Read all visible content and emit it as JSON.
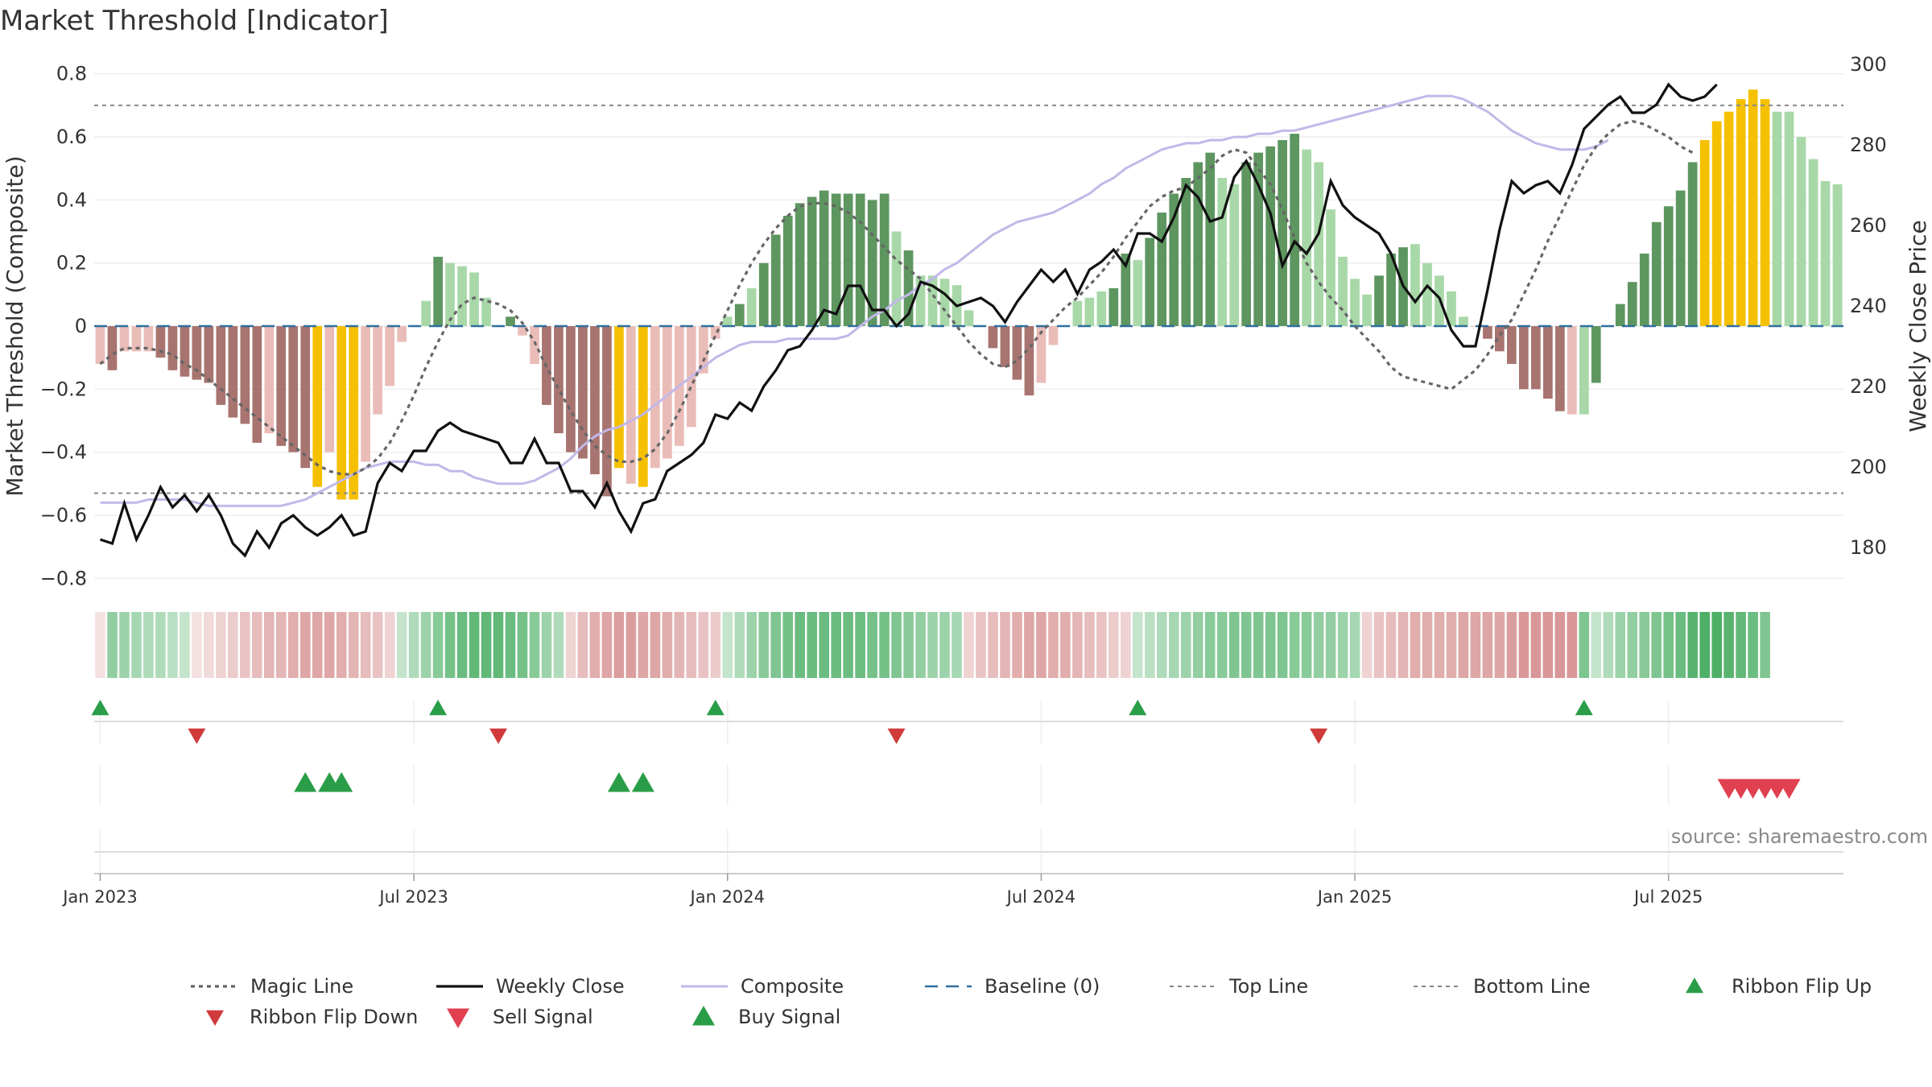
{
  "title": "Market Threshold [Indicator]",
  "source": "source: sharemaestro.com",
  "colors": {
    "magic_line": "#666666",
    "weekly_close": "#111111",
    "composite": "#c2b8e8",
    "baseline": "#2f6f9f",
    "threshold_lines": "#888888",
    "buy_green": "#2a9d48",
    "sell_red": "#e04050",
    "flip_down_red": "#d03a3a",
    "bar_dark_green": "#5e9660",
    "bar_light_green": "#a8d8a8",
    "bar_dark_red": "#a87470",
    "bar_light_red": "#eabcb8",
    "bar_yellow": "#f5c000"
  },
  "chart_data": {
    "type": "bar",
    "start_week": "2022-12-26",
    "y_left": {
      "label": "Market Threshold (Composite)",
      "range": [
        -0.83,
        0.83
      ],
      "ticks": [
        0.8,
        0.6,
        0.4,
        0.2,
        0,
        -0.2,
        -0.4,
        -0.6,
        -0.8
      ],
      "tick_labels": [
        "0.8",
        "0.6",
        "0.4",
        "0.2",
        "0",
        "−0.2",
        "−0.4",
        "−0.6",
        "−0.8"
      ]
    },
    "y_right": {
      "label": "Weekly Close Price",
      "range": [
        170,
        300
      ],
      "ticks": [
        300,
        280,
        260,
        240,
        220,
        200,
        180
      ],
      "tick_labels": [
        "300",
        "280",
        "260",
        "240",
        "220",
        "200",
        "180"
      ]
    },
    "x_ticks": [
      {
        "label": "Jan 2023",
        "week": 1
      },
      {
        "label": "Jul 2023",
        "week": 27
      },
      {
        "label": "Jan 2024",
        "week": 53
      },
      {
        "label": "Jul 2024",
        "week": 79
      },
      {
        "label": "Jan 2025",
        "week": 105
      },
      {
        "label": "Jul 2025",
        "week": 131
      }
    ],
    "top_line": 0.7,
    "bottom_line": -0.53,
    "baseline": 0,
    "composite": [
      -0.12,
      -0.14,
      -0.08,
      -0.08,
      -0.08,
      -0.1,
      -0.14,
      -0.16,
      -0.17,
      -0.18,
      -0.25,
      -0.29,
      -0.31,
      -0.37,
      -0.34,
      -0.38,
      -0.4,
      -0.45,
      -0.51,
      -0.4,
      -0.55,
      -0.55,
      -0.43,
      -0.28,
      -0.19,
      -0.05,
      0.0,
      0.08,
      0.22,
      0.2,
      0.19,
      0.17,
      0.09,
      0.0,
      0.03,
      -0.03,
      -0.12,
      -0.25,
      -0.34,
      -0.4,
      -0.42,
      -0.47,
      -0.54,
      -0.45,
      -0.5,
      -0.51,
      -0.45,
      -0.42,
      -0.38,
      -0.32,
      -0.15,
      -0.04,
      0.03,
      0.07,
      0.12,
      0.2,
      0.29,
      0.35,
      0.39,
      0.41,
      0.43,
      0.42,
      0.42,
      0.42,
      0.4,
      0.42,
      0.3,
      0.24,
      0.16,
      0.16,
      0.15,
      0.13,
      0.05,
      0.0,
      -0.07,
      -0.13,
      -0.17,
      -0.22,
      -0.18,
      -0.06,
      0.0,
      0.08,
      0.09,
      0.11,
      0.12,
      0.23,
      0.21,
      0.28,
      0.36,
      0.42,
      0.47,
      0.52,
      0.55,
      0.47,
      0.45,
      0.52,
      0.55,
      0.57,
      0.59,
      0.61,
      0.56,
      0.52,
      0.37,
      0.22,
      0.15,
      0.1,
      0.16,
      0.23,
      0.25,
      0.26,
      0.2,
      0.16,
      0.11,
      0.03,
      0.0,
      -0.04,
      -0.08,
      -0.12,
      -0.2,
      -0.2,
      -0.23,
      -0.27,
      -0.28,
      -0.28,
      -0.18,
      0.0,
      0.07,
      0.14,
      0.23,
      0.33,
      0.38,
      0.43,
      0.52,
      0.59,
      0.65,
      0.68,
      0.72,
      0.75,
      0.72,
      0.68,
      0.68,
      0.6,
      0.53,
      0.46,
      0.45
    ],
    "bar_colors": [
      "lr",
      "dr",
      "lr",
      "lr",
      "lr",
      "dr",
      "dr",
      "dr",
      "dr",
      "dr",
      "dr",
      "dr",
      "dr",
      "dr",
      "lr",
      "dr",
      "dr",
      "dr",
      "y",
      "lr",
      "y",
      "y",
      "lr",
      "lr",
      "lr",
      "lr",
      "lr",
      "lg",
      "dg",
      "lg",
      "lg",
      "lg",
      "lg",
      "lg",
      "dg",
      "lr",
      "lr",
      "dr",
      "dr",
      "dr",
      "dr",
      "dr",
      "dr",
      "y",
      "lr",
      "y",
      "lr",
      "lr",
      "lr",
      "lr",
      "lr",
      "lr",
      "lg",
      "dg",
      "lg",
      "dg",
      "dg",
      "dg",
      "dg",
      "dg",
      "dg",
      "dg",
      "dg",
      "dg",
      "dg",
      "dg",
      "lg",
      "dg",
      "lg",
      "lg",
      "lg",
      "lg",
      "lg",
      "lg",
      "dr",
      "dr",
      "dr",
      "dr",
      "lr",
      "lr",
      "lg",
      "lg",
      "lg",
      "lg",
      "dg",
      "dg",
      "lg",
      "dg",
      "dg",
      "dg",
      "dg",
      "dg",
      "dg",
      "lg",
      "lg",
      "dg",
      "dg",
      "dg",
      "dg",
      "dg",
      "lg",
      "lg",
      "lg",
      "lg",
      "lg",
      "lg",
      "dg",
      "dg",
      "dg",
      "lg",
      "lg",
      "lg",
      "lg",
      "lg",
      "lr",
      "dr",
      "dr",
      "dr",
      "dr",
      "dr",
      "dr",
      "dr",
      "lr",
      "lg",
      "dg",
      "dg",
      "dg",
      "dg",
      "dg",
      "dg",
      "dg",
      "dg",
      "dg",
      "y",
      "y",
      "y",
      "y",
      "y",
      "y",
      "lg",
      "lg",
      "lg",
      "lg"
    ],
    "magic_line": [
      -0.12,
      -0.09,
      -0.07,
      -0.07,
      -0.07,
      -0.08,
      -0.09,
      -0.12,
      -0.14,
      -0.17,
      -0.2,
      -0.23,
      -0.26,
      -0.29,
      -0.32,
      -0.35,
      -0.38,
      -0.41,
      -0.44,
      -0.46,
      -0.47,
      -0.47,
      -0.45,
      -0.42,
      -0.37,
      -0.3,
      -0.22,
      -0.13,
      -0.05,
      0.02,
      0.07,
      0.09,
      0.08,
      0.07,
      0.05,
      0.01,
      -0.05,
      -0.13,
      -0.2,
      -0.27,
      -0.33,
      -0.38,
      -0.41,
      -0.43,
      -0.43,
      -0.42,
      -0.39,
      -0.34,
      -0.27,
      -0.19,
      -0.11,
      -0.03,
      0.05,
      0.13,
      0.2,
      0.26,
      0.31,
      0.35,
      0.38,
      0.39,
      0.39,
      0.38,
      0.36,
      0.33,
      0.29,
      0.25,
      0.21,
      0.18,
      0.15,
      0.1,
      0.05,
      0.0,
      -0.05,
      -0.09,
      -0.12,
      -0.13,
      -0.11,
      -0.07,
      -0.02,
      0.02,
      0.06,
      0.09,
      0.13,
      0.17,
      0.22,
      0.28,
      0.33,
      0.38,
      0.41,
      0.43,
      0.44,
      0.47,
      0.5,
      0.54,
      0.56,
      0.55,
      0.5,
      0.45,
      0.37,
      0.28,
      0.2,
      0.14,
      0.09,
      0.05,
      0.0,
      -0.04,
      -0.08,
      -0.13,
      -0.16,
      -0.17,
      -0.18,
      -0.19,
      -0.2,
      -0.17,
      -0.14,
      -0.09,
      -0.03,
      0.02,
      0.1,
      0.18,
      0.27,
      0.35,
      0.43,
      0.51,
      0.57,
      0.61,
      0.64,
      0.65,
      0.64,
      0.62,
      0.6,
      0.57,
      0.55
    ],
    "composite_line": [
      -0.56,
      -0.56,
      -0.56,
      -0.56,
      -0.55,
      -0.55,
      -0.55,
      -0.55,
      -0.56,
      -0.57,
      -0.57,
      -0.57,
      -0.57,
      -0.57,
      -0.57,
      -0.57,
      -0.56,
      -0.55,
      -0.53,
      -0.51,
      -0.49,
      -0.47,
      -0.45,
      -0.44,
      -0.43,
      -0.43,
      -0.43,
      -0.44,
      -0.44,
      -0.46,
      -0.46,
      -0.48,
      -0.49,
      -0.5,
      -0.5,
      -0.5,
      -0.49,
      -0.47,
      -0.45,
      -0.42,
      -0.38,
      -0.35,
      -0.33,
      -0.32,
      -0.3,
      -0.28,
      -0.25,
      -0.22,
      -0.19,
      -0.16,
      -0.13,
      -0.1,
      -0.08,
      -0.06,
      -0.05,
      -0.05,
      -0.05,
      -0.04,
      -0.04,
      -0.04,
      -0.04,
      -0.04,
      -0.03,
      0.0,
      0.03,
      0.05,
      0.08,
      0.1,
      0.13,
      0.15,
      0.18,
      0.2,
      0.23,
      0.26,
      0.29,
      0.31,
      0.33,
      0.34,
      0.35,
      0.36,
      0.38,
      0.4,
      0.42,
      0.45,
      0.47,
      0.5,
      0.52,
      0.54,
      0.56,
      0.57,
      0.58,
      0.58,
      0.59,
      0.59,
      0.6,
      0.6,
      0.61,
      0.61,
      0.62,
      0.62,
      0.63,
      0.64,
      0.65,
      0.66,
      0.67,
      0.68,
      0.69,
      0.7,
      0.71,
      0.72,
      0.73,
      0.73,
      0.73,
      0.72,
      0.7,
      0.68,
      0.65,
      0.62,
      0.6,
      0.58,
      0.57,
      0.56,
      0.56,
      0.56,
      0.57,
      0.59
    ],
    "weekly_close": [
      182,
      181,
      191,
      182,
      188,
      195,
      190,
      193,
      189,
      193,
      188,
      181,
      178,
      184,
      180,
      186,
      188,
      185,
      183,
      185,
      188,
      183,
      184,
      196,
      201,
      199,
      204,
      204,
      209,
      211,
      209,
      208,
      207,
      206,
      201,
      201,
      207,
      201,
      201,
      194,
      194,
      190,
      196,
      189,
      184,
      191,
      192,
      199,
      201,
      203,
      206,
      213,
      212,
      216,
      214,
      220,
      224,
      229,
      230,
      234,
      239,
      238,
      245,
      245,
      239,
      239,
      235,
      238,
      246,
      245,
      243,
      240,
      241,
      242,
      240,
      236,
      241,
      245,
      249,
      246,
      249,
      243,
      249,
      251,
      254,
      250,
      258,
      258,
      256,
      262,
      270,
      267,
      261,
      262,
      272,
      276,
      270,
      263,
      250,
      256,
      253,
      258,
      271,
      265,
      262,
      260,
      258,
      253,
      245,
      241,
      245,
      242,
      234,
      230,
      230,
      244,
      259,
      271,
      268,
      270,
      271,
      268,
      275,
      284,
      287,
      290,
      292,
      288,
      288,
      290,
      295,
      292,
      291,
      292,
      295
    ]
  },
  "ribbon": [
    "lr",
    "lg",
    "lg",
    "lg",
    "lg",
    "lg",
    "lg",
    "lg",
    "lr",
    "lr",
    "lr",
    "lr",
    "lr",
    "lr",
    "lr",
    "lr",
    "lr",
    "lr",
    "lr",
    "lr",
    "lr",
    "lr",
    "lr",
    "lr",
    "lr",
    "lg",
    "lg",
    "lg",
    "lg",
    "dg",
    "dg",
    "dg",
    "dg",
    "dg",
    "dg",
    "dg",
    "dg",
    "dg",
    "dg",
    "lr",
    "lr",
    "lr",
    "lr",
    "lr",
    "lr",
    "lr",
    "lr",
    "lr",
    "lr",
    "lr",
    "lr",
    "lr",
    "lg",
    "lg",
    "lg",
    "lg",
    "lg",
    "lg",
    "lg",
    "lg",
    "lg",
    "lg",
    "lg",
    "lg",
    "lg",
    "lg",
    "lg",
    "lg",
    "lg",
    "lg",
    "lg",
    "lg",
    "lr",
    "lr",
    "lr",
    "lr",
    "lr",
    "lr",
    "lr",
    "lr",
    "lr",
    "lr",
    "lr",
    "lr",
    "lr",
    "lr",
    "lg",
    "lg",
    "lg",
    "lg",
    "lg",
    "lg",
    "lg",
    "lg",
    "lg",
    "lg",
    "lg",
    "lg",
    "lg",
    "lg",
    "lg",
    "lg",
    "lg",
    "lg",
    "lg",
    "lr",
    "lr",
    "lr",
    "lr",
    "lr",
    "lr",
    "lr",
    "lr",
    "lr",
    "lr",
    "lr",
    "lr",
    "lr",
    "lr",
    "lr",
    "lr",
    "lr",
    "lr",
    "lg",
    "lg",
    "lg",
    "lg",
    "lg",
    "lg",
    "dg",
    "dg",
    "dg",
    "dg",
    "dg",
    "dg",
    "lg",
    "lg",
    "lg",
    "lg"
  ],
  "ribbon_intensity": [
    0.2,
    0.55,
    0.5,
    0.45,
    0.4,
    0.4,
    0.35,
    0.3,
    0.2,
    0.25,
    0.3,
    0.35,
    0.4,
    0.45,
    0.5,
    0.5,
    0.55,
    0.6,
    0.6,
    0.6,
    0.55,
    0.5,
    0.45,
    0.4,
    0.3,
    0.3,
    0.4,
    0.5,
    0.6,
    0.7,
    0.75,
    0.8,
    0.8,
    0.8,
    0.75,
    0.7,
    0.6,
    0.5,
    0.4,
    0.3,
    0.45,
    0.55,
    0.6,
    0.65,
    0.65,
    0.6,
    0.6,
    0.55,
    0.5,
    0.45,
    0.4,
    0.35,
    0.3,
    0.4,
    0.5,
    0.6,
    0.65,
    0.7,
    0.75,
    0.75,
    0.75,
    0.75,
    0.75,
    0.75,
    0.7,
    0.7,
    0.65,
    0.6,
    0.55,
    0.5,
    0.5,
    0.45,
    0.3,
    0.4,
    0.45,
    0.5,
    0.55,
    0.6,
    0.6,
    0.55,
    0.55,
    0.5,
    0.45,
    0.4,
    0.35,
    0.3,
    0.3,
    0.35,
    0.4,
    0.45,
    0.5,
    0.55,
    0.6,
    0.6,
    0.65,
    0.65,
    0.65,
    0.65,
    0.65,
    0.6,
    0.6,
    0.55,
    0.55,
    0.5,
    0.45,
    0.3,
    0.4,
    0.45,
    0.5,
    0.55,
    0.55,
    0.55,
    0.55,
    0.6,
    0.6,
    0.6,
    0.6,
    0.65,
    0.7,
    0.7,
    0.7,
    0.7,
    0.7,
    0.65,
    0.3,
    0.4,
    0.5,
    0.55,
    0.6,
    0.65,
    0.7,
    0.75,
    0.85,
    0.9,
    0.9,
    0.85,
    0.8,
    0.75,
    0.65,
    0.55,
    0.45,
    0.35
  ],
  "signals": {
    "ribbon_flip_up": [
      1,
      29,
      52,
      87,
      124
    ],
    "ribbon_flip_down": [
      9,
      34,
      67,
      102
    ],
    "buy_signal": [
      18,
      20,
      21,
      44,
      46
    ],
    "sell_signal": [
      136,
      137,
      138,
      139,
      140,
      141
    ]
  },
  "legend": [
    {
      "key": "magic",
      "label": "Magic Line"
    },
    {
      "key": "close",
      "label": "Weekly Close"
    },
    {
      "key": "composite",
      "label": "Composite"
    },
    {
      "key": "baseline",
      "label": "Baseline (0)"
    },
    {
      "key": "top",
      "label": "Top Line"
    },
    {
      "key": "bottom",
      "label": "Bottom Line"
    },
    {
      "key": "flipup",
      "label": "Ribbon Flip Up"
    },
    {
      "key": "flipdown",
      "label": "Ribbon Flip Down"
    },
    {
      "key": "sell",
      "label": "Sell Signal"
    },
    {
      "key": "buy",
      "label": "Buy Signal"
    }
  ]
}
